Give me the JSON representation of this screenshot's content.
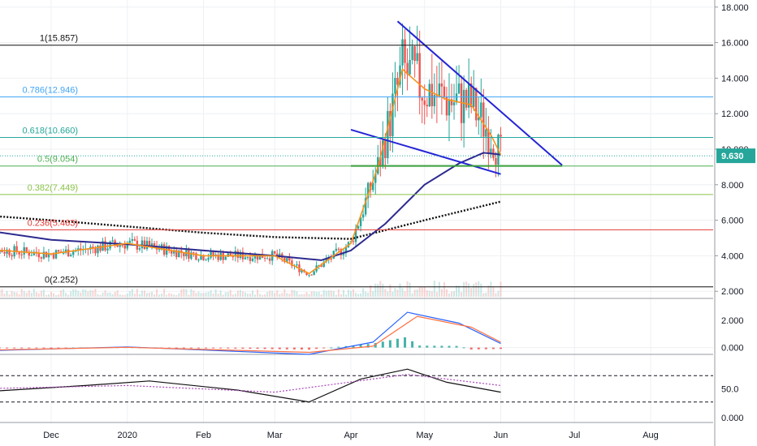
{
  "colors": {
    "candle_up": "#26a69a",
    "candle_down": "#ef5350",
    "ema_fast": "#f7931a",
    "ma_mid": "#2c2a8f",
    "ma_slow": "#111111",
    "trendline": "#2424d6",
    "support": "#1e8a1e",
    "fib_0": "#111111",
    "fib_0236": "#e53935",
    "fib_0382": "#8bc34a",
    "fib_05": "#4caf50",
    "fib_0618": "#26a69a",
    "fib_0786": "#42a5f5",
    "fib_1": "#111111",
    "price_tag_bg": "#26a69a",
    "macd_line": "#2962ff",
    "signal_line": "#ff7043",
    "rsi_line": "#111111",
    "rsi_ma": "#ab47bc"
  },
  "chart_data": [
    {
      "type": "candlestick",
      "panel": "price",
      "y_axis_ticks": [
        "18.000",
        "16.000",
        "14.000",
        "12.000",
        "10.000",
        "8.000",
        "6.000",
        "4.000",
        "2.000"
      ],
      "ylim": [
        1.6,
        18.4
      ],
      "x_axis_ticks": [
        "Dec",
        "2020",
        "Feb",
        "Mar",
        "Apr",
        "May",
        "Jun",
        "Jul",
        "Aug"
      ],
      "current_price_label": "9.630",
      "current_price": 9.63,
      "fib_levels": [
        {
          "label": "1(15.857)",
          "value": 15.857,
          "color_key": "fib_1"
        },
        {
          "label": "0.786(12.946)",
          "value": 12.946,
          "color_key": "fib_0786"
        },
        {
          "label": "0.618(10.660)",
          "value": 10.66,
          "color_key": "fib_0618"
        },
        {
          "label": "0.5(9.054)",
          "value": 9.054,
          "color_key": "fib_05"
        },
        {
          "label": "0.382(7.449)",
          "value": 7.449,
          "color_key": "fib_0382"
        },
        {
          "label": "0.236(5.463)",
          "value": 5.463,
          "color_key": "fib_0236"
        },
        {
          "label": "0(2.252)",
          "value": 2.252,
          "color_key": "fib_0"
        }
      ],
      "trendlines": [
        {
          "name": "upper",
          "from": [
            "2020-04-20",
            17.2
          ],
          "to": [
            "2020-06-26",
            9.1
          ]
        },
        {
          "name": "lower",
          "from": [
            "2020-04-01",
            11.1
          ],
          "to": [
            "2020-06-01",
            8.6
          ]
        },
        {
          "name": "support",
          "from": [
            "2020-04-01",
            9.06
          ],
          "to": [
            "2020-06-26",
            9.06
          ]
        }
      ],
      "ma_slow_dotted": [
        [
          "2019-11-01",
          6.3
        ],
        [
          "2019-12-01",
          6.0
        ],
        [
          "2020-01-01",
          5.65
        ],
        [
          "2020-02-01",
          5.3
        ],
        [
          "2020-03-01",
          5.05
        ],
        [
          "2020-04-01",
          4.95
        ],
        [
          "2020-05-01",
          6.0
        ],
        [
          "2020-06-01",
          7.05
        ]
      ],
      "ma_mid": [
        [
          "2019-11-01",
          5.5
        ],
        [
          "2019-12-01",
          4.9
        ],
        [
          "2020-01-01",
          4.65
        ],
        [
          "2020-02-01",
          4.3
        ],
        [
          "2020-03-01",
          4.0
        ],
        [
          "2020-03-20",
          3.75
        ],
        [
          "2020-04-01",
          4.3
        ],
        [
          "2020-04-15",
          5.8
        ],
        [
          "2020-05-01",
          8.0
        ],
        [
          "2020-05-15",
          9.2
        ],
        [
          "2020-05-25",
          9.8
        ],
        [
          "2020-06-01",
          9.7
        ]
      ],
      "ema_fast": [
        [
          "2019-11-01",
          4.4
        ],
        [
          "2019-12-01",
          4.1
        ],
        [
          "2020-01-01",
          4.7
        ],
        [
          "2020-02-01",
          4.0
        ],
        [
          "2020-03-01",
          4.0
        ],
        [
          "2020-03-15",
          3.0
        ],
        [
          "2020-04-01",
          4.7
        ],
        [
          "2020-04-12",
          9.0
        ],
        [
          "2020-04-22",
          14.5
        ],
        [
          "2020-05-01",
          13.4
        ],
        [
          "2020-05-10",
          12.8
        ],
        [
          "2020-05-20",
          12.5
        ],
        [
          "2020-05-28",
          10.8
        ],
        [
          "2020-06-01",
          9.7
        ]
      ]
    },
    {
      "type": "line",
      "panel": "macd",
      "y_axis_ticks": [
        "2.000",
        "0.000"
      ],
      "ylim": [
        -0.5,
        3.5
      ],
      "series": [
        {
          "values": [
            [
              "2019-11-01",
              -0.25
            ],
            [
              "2020-01-01",
              0.05
            ],
            [
              "2020-03-15",
              -0.5
            ],
            [
              "2020-04-10",
              0.4
            ],
            [
              "2020-04-24",
              2.6
            ],
            [
              "2020-05-15",
              1.8
            ],
            [
              "2020-06-01",
              0.3
            ]
          ],
          "color_key": "macd_line"
        },
        {
          "values": [
            [
              "2019-11-01",
              -0.2
            ],
            [
              "2020-01-01",
              0.02
            ],
            [
              "2020-03-15",
              -0.35
            ],
            [
              "2020-04-10",
              0.1
            ],
            [
              "2020-04-28",
              2.3
            ],
            [
              "2020-05-20",
              1.5
            ],
            [
              "2020-06-01",
              0.4
            ]
          ],
          "color_key": "signal_line"
        }
      ]
    },
    {
      "type": "line",
      "panel": "rsi",
      "y_axis_ticks": [
        "50.0",
        "0.000"
      ],
      "ylim": [
        0,
        100
      ],
      "series": [
        {
          "values": [
            [
              "2019-11-01",
              45
            ],
            [
              "2019-12-15",
              55
            ],
            [
              "2020-01-10",
              62
            ],
            [
              "2020-02-15",
              48
            ],
            [
              "2020-03-15",
              30
            ],
            [
              "2020-04-05",
              65
            ],
            [
              "2020-04-24",
              80
            ],
            [
              "2020-05-10",
              60
            ],
            [
              "2020-06-01",
              45
            ]
          ],
          "color_key": "rsi_line"
        },
        {
          "values": [
            [
              "2019-11-01",
              50
            ],
            [
              "2020-01-01",
              55
            ],
            [
              "2020-03-01",
              45
            ],
            [
              "2020-04-24",
              72
            ],
            [
              "2020-06-01",
              55
            ]
          ],
          "color_key": "rsi_ma"
        }
      ]
    }
  ]
}
